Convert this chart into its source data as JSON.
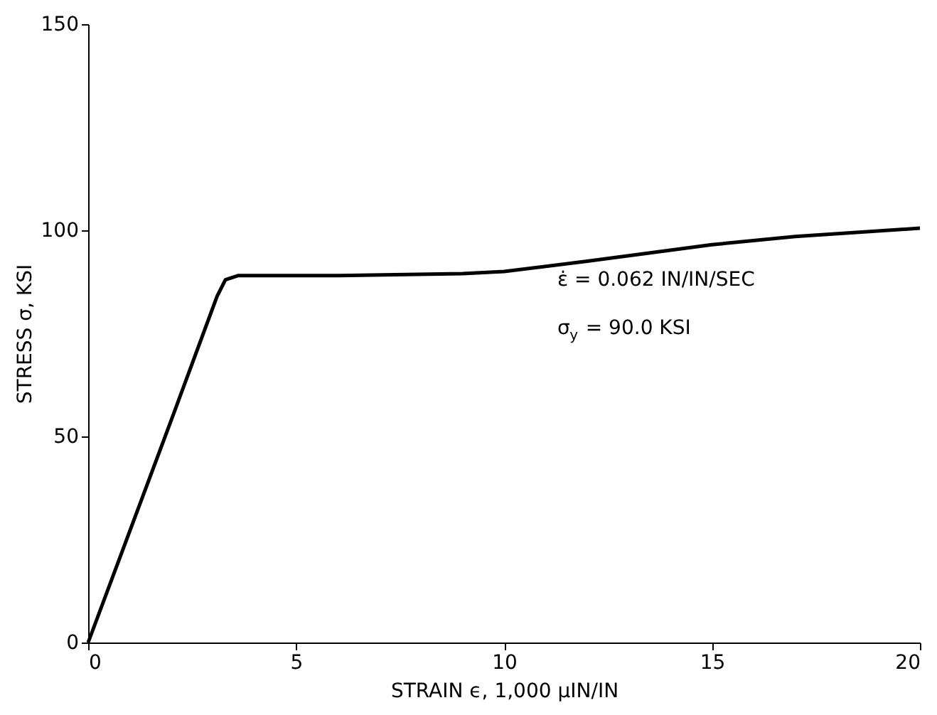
{
  "chart_data": {
    "type": "line",
    "xlabel": "STRAIN  ϵ,  1,000 μIN/IN",
    "ylabel": "STRESS σ, KSI",
    "x": [
      0,
      1,
      2,
      3.1,
      3.3,
      3.6,
      6,
      9,
      10,
      12,
      15,
      17,
      20
    ],
    "series": [
      {
        "color": "#000000",
        "values": [
          0,
          27,
          54,
          84,
          88,
          89,
          89,
          89.5,
          90,
          92.5,
          96.5,
          98.5,
          100.5
        ]
      }
    ],
    "xlim": [
      0,
      20
    ],
    "xticks": [
      0,
      5,
      10,
      15,
      20
    ],
    "ylim": [
      0,
      150
    ],
    "yticks": [
      0,
      50,
      100,
      150
    ],
    "annotations": [
      "ε̇ = 0.062 IN/IN/SEC",
      "σ$_{y}$ = 90.0 KSI"
    ],
    "grid": false,
    "marker": "none",
    "line_style": "solid"
  }
}
